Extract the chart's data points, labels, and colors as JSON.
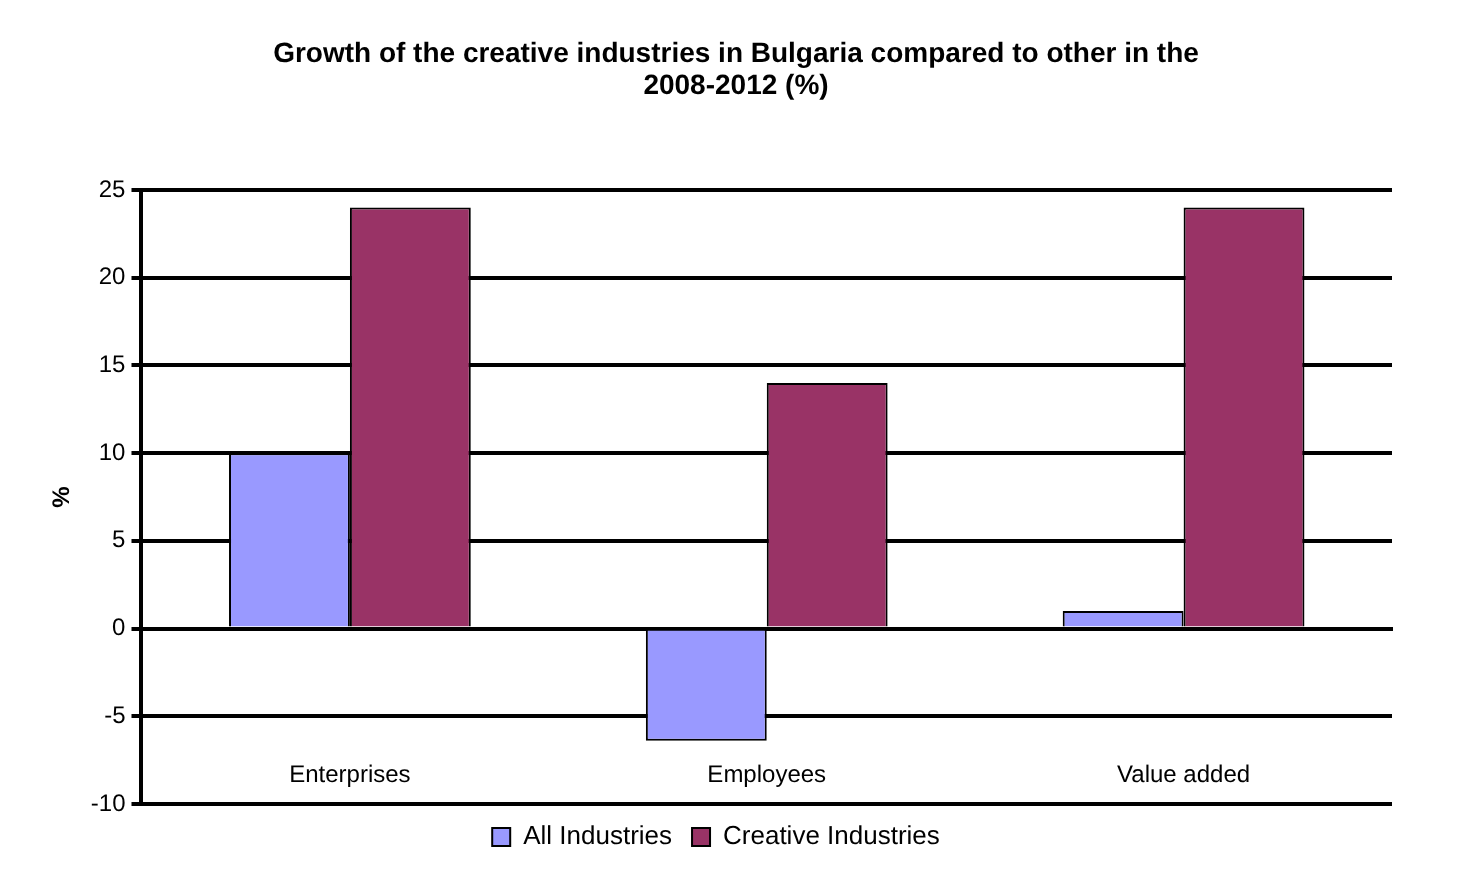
{
  "chart_data": {
    "type": "bar",
    "title": "Growth of the creative industries  in Bulgaria compared to other in the 2008-2012  (%)",
    "ylabel": "%",
    "categories": [
      "Enterprises",
      "Employees",
      "Value added"
    ],
    "series": [
      {
        "name": "All Industries",
        "color": "#9999ff",
        "values": [
          10,
          -6.4,
          1
        ]
      },
      {
        "name": "Creative Industries",
        "color": "#993366",
        "values": [
          24,
          14,
          24
        ]
      }
    ],
    "ylim": [
      -10,
      25
    ],
    "yticks": [
      -10,
      -5,
      0,
      5,
      10,
      15,
      20,
      25
    ],
    "grid": "y",
    "legend": "bottom"
  }
}
